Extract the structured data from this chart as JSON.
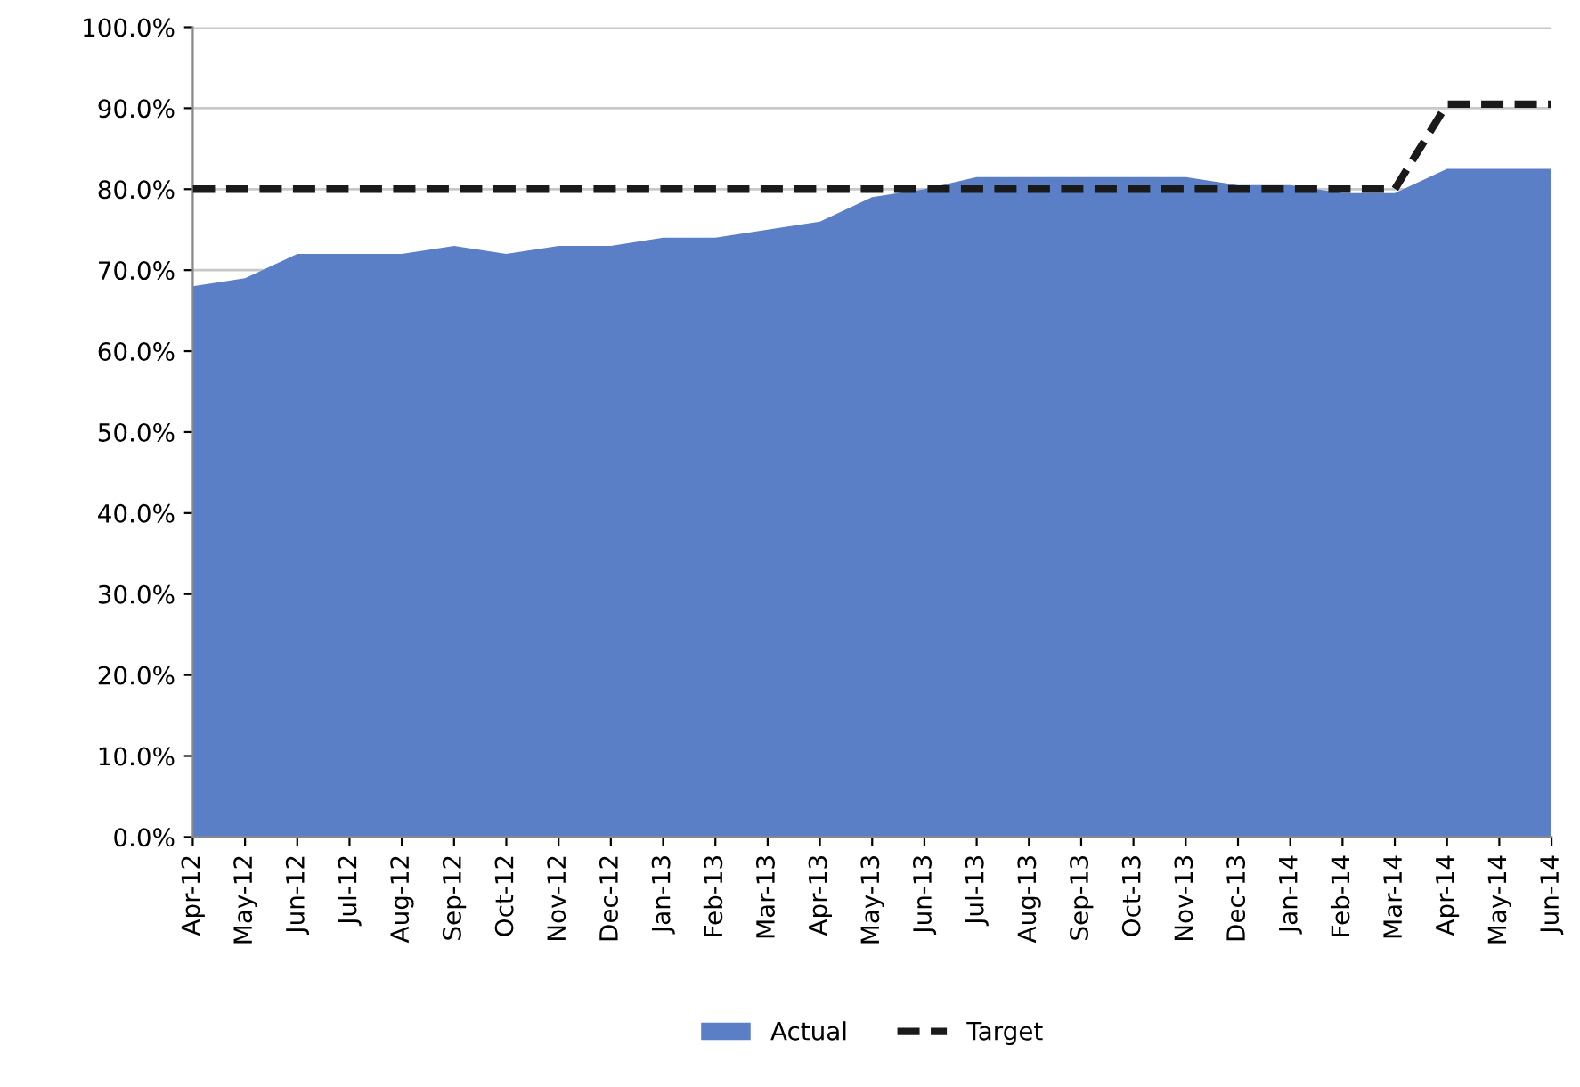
{
  "chart_data": {
    "type": "area",
    "categories": [
      "Apr-12",
      "May-12",
      "Jun-12",
      "Jul-12",
      "Aug-12",
      "Sep-12",
      "Oct-12",
      "Nov-12",
      "Dec-12",
      "Jan-13",
      "Feb-13",
      "Mar-13",
      "Apr-13",
      "May-13",
      "Jun-13",
      "Jul-13",
      "Aug-13",
      "Sep-13",
      "Oct-13",
      "Nov-13",
      "Dec-13",
      "Jan-14",
      "Feb-14",
      "Mar-14",
      "Apr-14",
      "May-14",
      "Jun-14"
    ],
    "series": [
      {
        "name": "Actual",
        "color": "#5b7fc7",
        "values": [
          68,
          69,
          72,
          72,
          72,
          73,
          72,
          73,
          73,
          74,
          74,
          75,
          76,
          79,
          80,
          81.5,
          81.5,
          81.5,
          81.5,
          81.5,
          80.5,
          80.5,
          79.5,
          79.5,
          82.5,
          82.5,
          82.5
        ]
      },
      {
        "name": "Target",
        "type": "line",
        "color": "#1a1a1a",
        "line_style": "dashed",
        "values": [
          80,
          80,
          80,
          80,
          80,
          80,
          80,
          80,
          80,
          80,
          80,
          80,
          80,
          80,
          80,
          80,
          80,
          80,
          80,
          80,
          80,
          80,
          80,
          80,
          90.5,
          90.5,
          90.5
        ]
      }
    ],
    "ylim": [
      0,
      100
    ],
    "yticks": [
      {
        "value": 0,
        "label": "0.0%"
      },
      {
        "value": 10,
        "label": "10.0%"
      },
      {
        "value": 20,
        "label": "20.0%"
      },
      {
        "value": 30,
        "label": "30.0%"
      },
      {
        "value": 40,
        "label": "40.0%"
      },
      {
        "value": 50,
        "label": "50.0%"
      },
      {
        "value": 60,
        "label": "60.0%"
      },
      {
        "value": 70,
        "label": "70.0%"
      },
      {
        "value": 80,
        "label": "80.0%"
      },
      {
        "value": 90,
        "label": "90.0%"
      },
      {
        "value": 100,
        "label": "100.0%"
      }
    ],
    "grid": "y",
    "legend": "bottom"
  }
}
